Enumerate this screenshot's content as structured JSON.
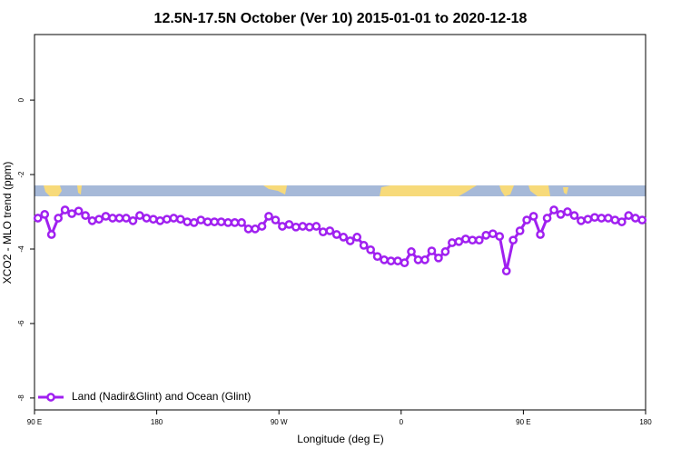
{
  "chart_data": {
    "type": "line",
    "title": "12.5N-17.5N October (Ver 10)   2015-01-01 to 2020-12-18",
    "xlabel": "Longitude (deg E)",
    "ylabel": "XCO2 - MLO trend (ppm)",
    "x": [
      92.5,
      97.5,
      102.5,
      107.5,
      112.5,
      117.5,
      122.5,
      127.5,
      132.5,
      137.5,
      142.5,
      147.5,
      152.5,
      157.5,
      162.5,
      167.5,
      172.5,
      177.5,
      182.5,
      187.5,
      192.5,
      197.5,
      202.5,
      207.5,
      212.5,
      217.5,
      222.5,
      227.5,
      232.5,
      237.5,
      242.5,
      247.5,
      252.5,
      257.5,
      262.5,
      267.5,
      272.5,
      277.5,
      282.5,
      287.5,
      292.5,
      297.5,
      302.5,
      307.5,
      312.5,
      317.5,
      322.5,
      327.5,
      332.5,
      337.5,
      342.5,
      347.5,
      352.5,
      357.5,
      362.5,
      367.5,
      372.5,
      377.5,
      382.5,
      387.5,
      392.5,
      397.5,
      402.5,
      407.5,
      412.5,
      417.5,
      422.5,
      427.5,
      432.5,
      437.5,
      442.5,
      447.5,
      452.5,
      457.5,
      462.5,
      467.5,
      472.5,
      477.5,
      482.5,
      487.5,
      492.5,
      497.5,
      502.5,
      507.5,
      512.5,
      517.5,
      522.5,
      527.5,
      532.5,
      537.5
    ],
    "series": [
      {
        "name": "Land (Nadir&Glint) and Ocean (Glint)",
        "color": "#a020f0",
        "values": [
          -3.17,
          -3.07,
          -3.61,
          -3.17,
          -2.95,
          -3.05,
          -2.98,
          -3.1,
          -3.24,
          -3.2,
          -3.12,
          -3.17,
          -3.17,
          -3.17,
          -3.24,
          -3.1,
          -3.17,
          -3.2,
          -3.24,
          -3.2,
          -3.17,
          -3.2,
          -3.27,
          -3.29,
          -3.22,
          -3.27,
          -3.27,
          -3.27,
          -3.29,
          -3.29,
          -3.29,
          -3.46,
          -3.46,
          -3.39,
          -3.12,
          -3.22,
          -3.39,
          -3.34,
          -3.41,
          -3.39,
          -3.41,
          -3.39,
          -3.54,
          -3.51,
          -3.61,
          -3.68,
          -3.78,
          -3.68,
          -3.9,
          -4.02,
          -4.2,
          -4.29,
          -4.32,
          -4.32,
          -4.37,
          -4.07,
          -4.29,
          -4.29,
          -4.05,
          -4.24,
          -4.07,
          -3.83,
          -3.8,
          -3.73,
          -3.76,
          -3.76,
          -3.63,
          -3.59,
          -3.66,
          -4.59,
          -3.76,
          -3.51,
          -3.22,
          -3.12,
          -3.61,
          -3.17,
          -2.95,
          -3.07,
          -3.0,
          -3.1,
          -3.24,
          -3.2,
          -3.15,
          -3.17,
          -3.17,
          -3.22,
          -3.27,
          -3.1,
          -3.17,
          -3.22
        ]
      }
    ],
    "xlim": [
      90,
      540
    ],
    "xticks": [
      {
        "value": 90,
        "label": "90 E"
      },
      180,
      {
        "value": 270,
        "label": "90 W"
      },
      {
        "value": 360,
        "label": "0"
      },
      {
        "value": 450,
        "label": "90 E"
      },
      {
        "value": 540,
        "label": "180"
      }
    ],
    "ylim": [
      -8.32,
      1.76
    ],
    "yticks": [
      0,
      -2,
      -4,
      -6,
      -8
    ],
    "legend_position": "lower left"
  }
}
